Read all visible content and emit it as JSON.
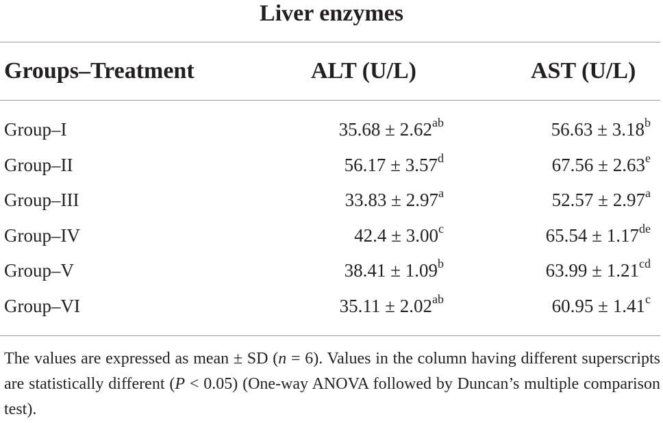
{
  "title": "Liver enzymes",
  "headers": {
    "group": "Groups–Treatment",
    "alt": "ALT (U/L)",
    "ast": "AST (U/L)"
  },
  "rows": [
    {
      "group": "Group–I",
      "alt": "35.68 ± 2.62",
      "alt_sup": "ab",
      "ast": "56.63 ± 3.18",
      "ast_sup": "b"
    },
    {
      "group": "Group–II",
      "alt": "56.17 ± 3.57",
      "alt_sup": "d",
      "ast": "67.56 ± 2.63",
      "ast_sup": "e"
    },
    {
      "group": "Group–III",
      "alt": "33.83 ± 2.97",
      "alt_sup": "a",
      "ast": "52.57 ± 2.97",
      "ast_sup": "a"
    },
    {
      "group": "Group–IV",
      "alt": "42.4 ± 3.00",
      "alt_sup": "c",
      "ast": "65.54 ± 1.17",
      "ast_sup": "de"
    },
    {
      "group": "Group–V",
      "alt": "38.41 ± 1.09",
      "alt_sup": "b",
      "ast": "63.99 ± 1.21",
      "ast_sup": "cd"
    },
    {
      "group": "Group–VI",
      "alt": "35.11 ± 2.02",
      "alt_sup": "ab",
      "ast": "60.95 ± 1.41",
      "ast_sup": "c"
    }
  ],
  "footnote": {
    "part1": "The values are expressed as mean ± SD (",
    "n_symbol": "n",
    "part2": " = 6). Values in the column having different superscripts are statistically different (",
    "p_symbol": "P",
    "part3": " < 0.05) (One-way ANOVA followed by Duncan’s multiple comparison test)."
  }
}
